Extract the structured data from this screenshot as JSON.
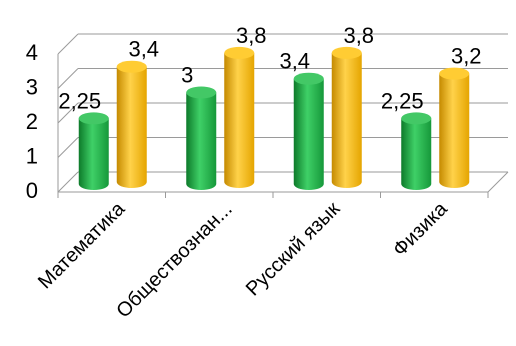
{
  "chart_data": {
    "type": "bar",
    "categories": [
      "Математика",
      "Обществознан...",
      "Русский язык",
      "Физика"
    ],
    "series": [
      {
        "values": [
          2.25,
          3,
          3.4,
          2.25
        ],
        "labels": [
          "2,25",
          "3",
          "3,4",
          "2,25"
        ],
        "color": "#1db044"
      },
      {
        "values": [
          3.4,
          3.8,
          3.8,
          3.2
        ],
        "labels": [
          "3,4",
          "3,8",
          "3,8",
          "3,2"
        ],
        "color": "#f5b800"
      }
    ],
    "yticks": [
      "0",
      "1",
      "2",
      "3",
      "4"
    ],
    "ylim": [
      0,
      4
    ],
    "grid": true,
    "legend": "none",
    "style": "3d-cylinder"
  }
}
